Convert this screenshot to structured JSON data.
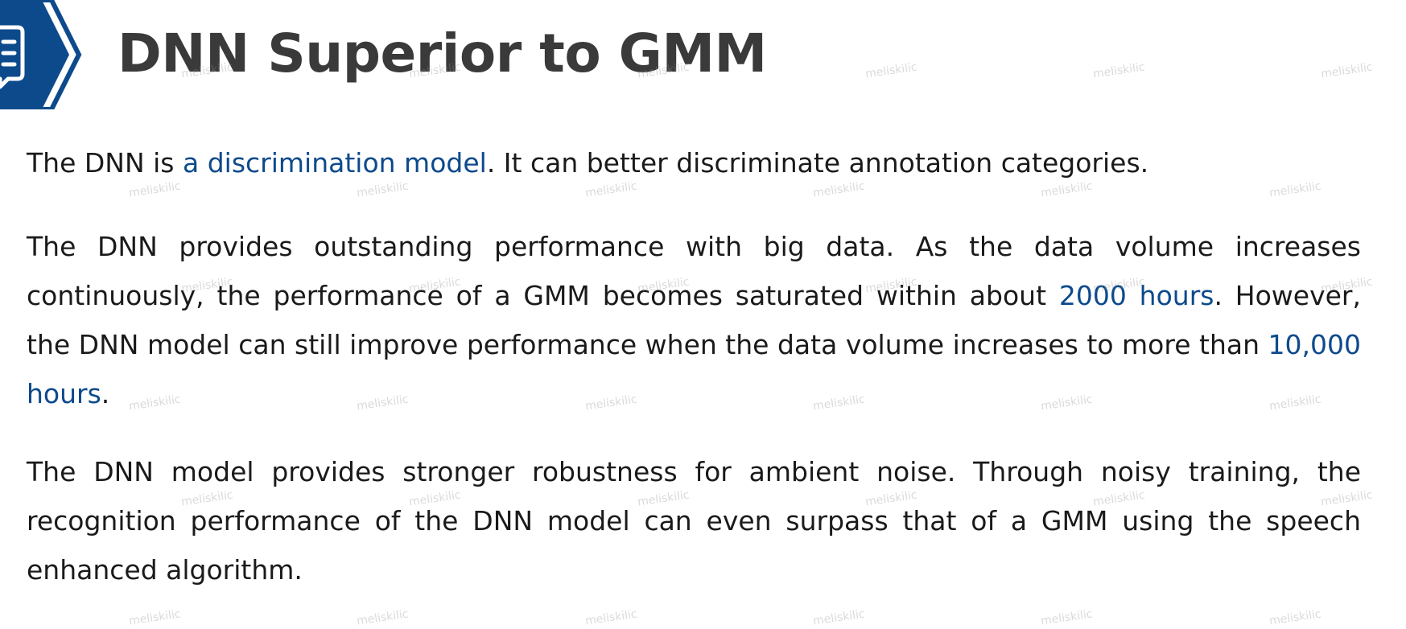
{
  "title": "DNN Superior to GMM",
  "header": {
    "icon": "document-list-icon",
    "accent_color": "#0d4a8c"
  },
  "paragraphs": {
    "p1": {
      "pre": "The DNN is ",
      "highlight": "a discrimination model",
      "post": ". It can better discriminate annotation categories."
    },
    "p2": {
      "pre": "The DNN provides outstanding performance with big data. As the data volume increases continuously, the performance of a GMM becomes saturated within about ",
      "highlight1": "2000 hours",
      "mid": ". However, the DNN model can still improve performance when the data volume increases to more than ",
      "highlight2": "10,000 hours",
      "post": "."
    },
    "p3": {
      "text": "The DNN model provides stronger robustness for ambient noise. Through noisy training, the recognition performance of the DNN model can even surpass that of a GMM using the speech enhanced algorithm."
    }
  },
  "colors": {
    "title": "#3a3a3a",
    "body": "#1a1a1a",
    "highlight": "#0d4a8c"
  },
  "watermark": "meliskilic"
}
